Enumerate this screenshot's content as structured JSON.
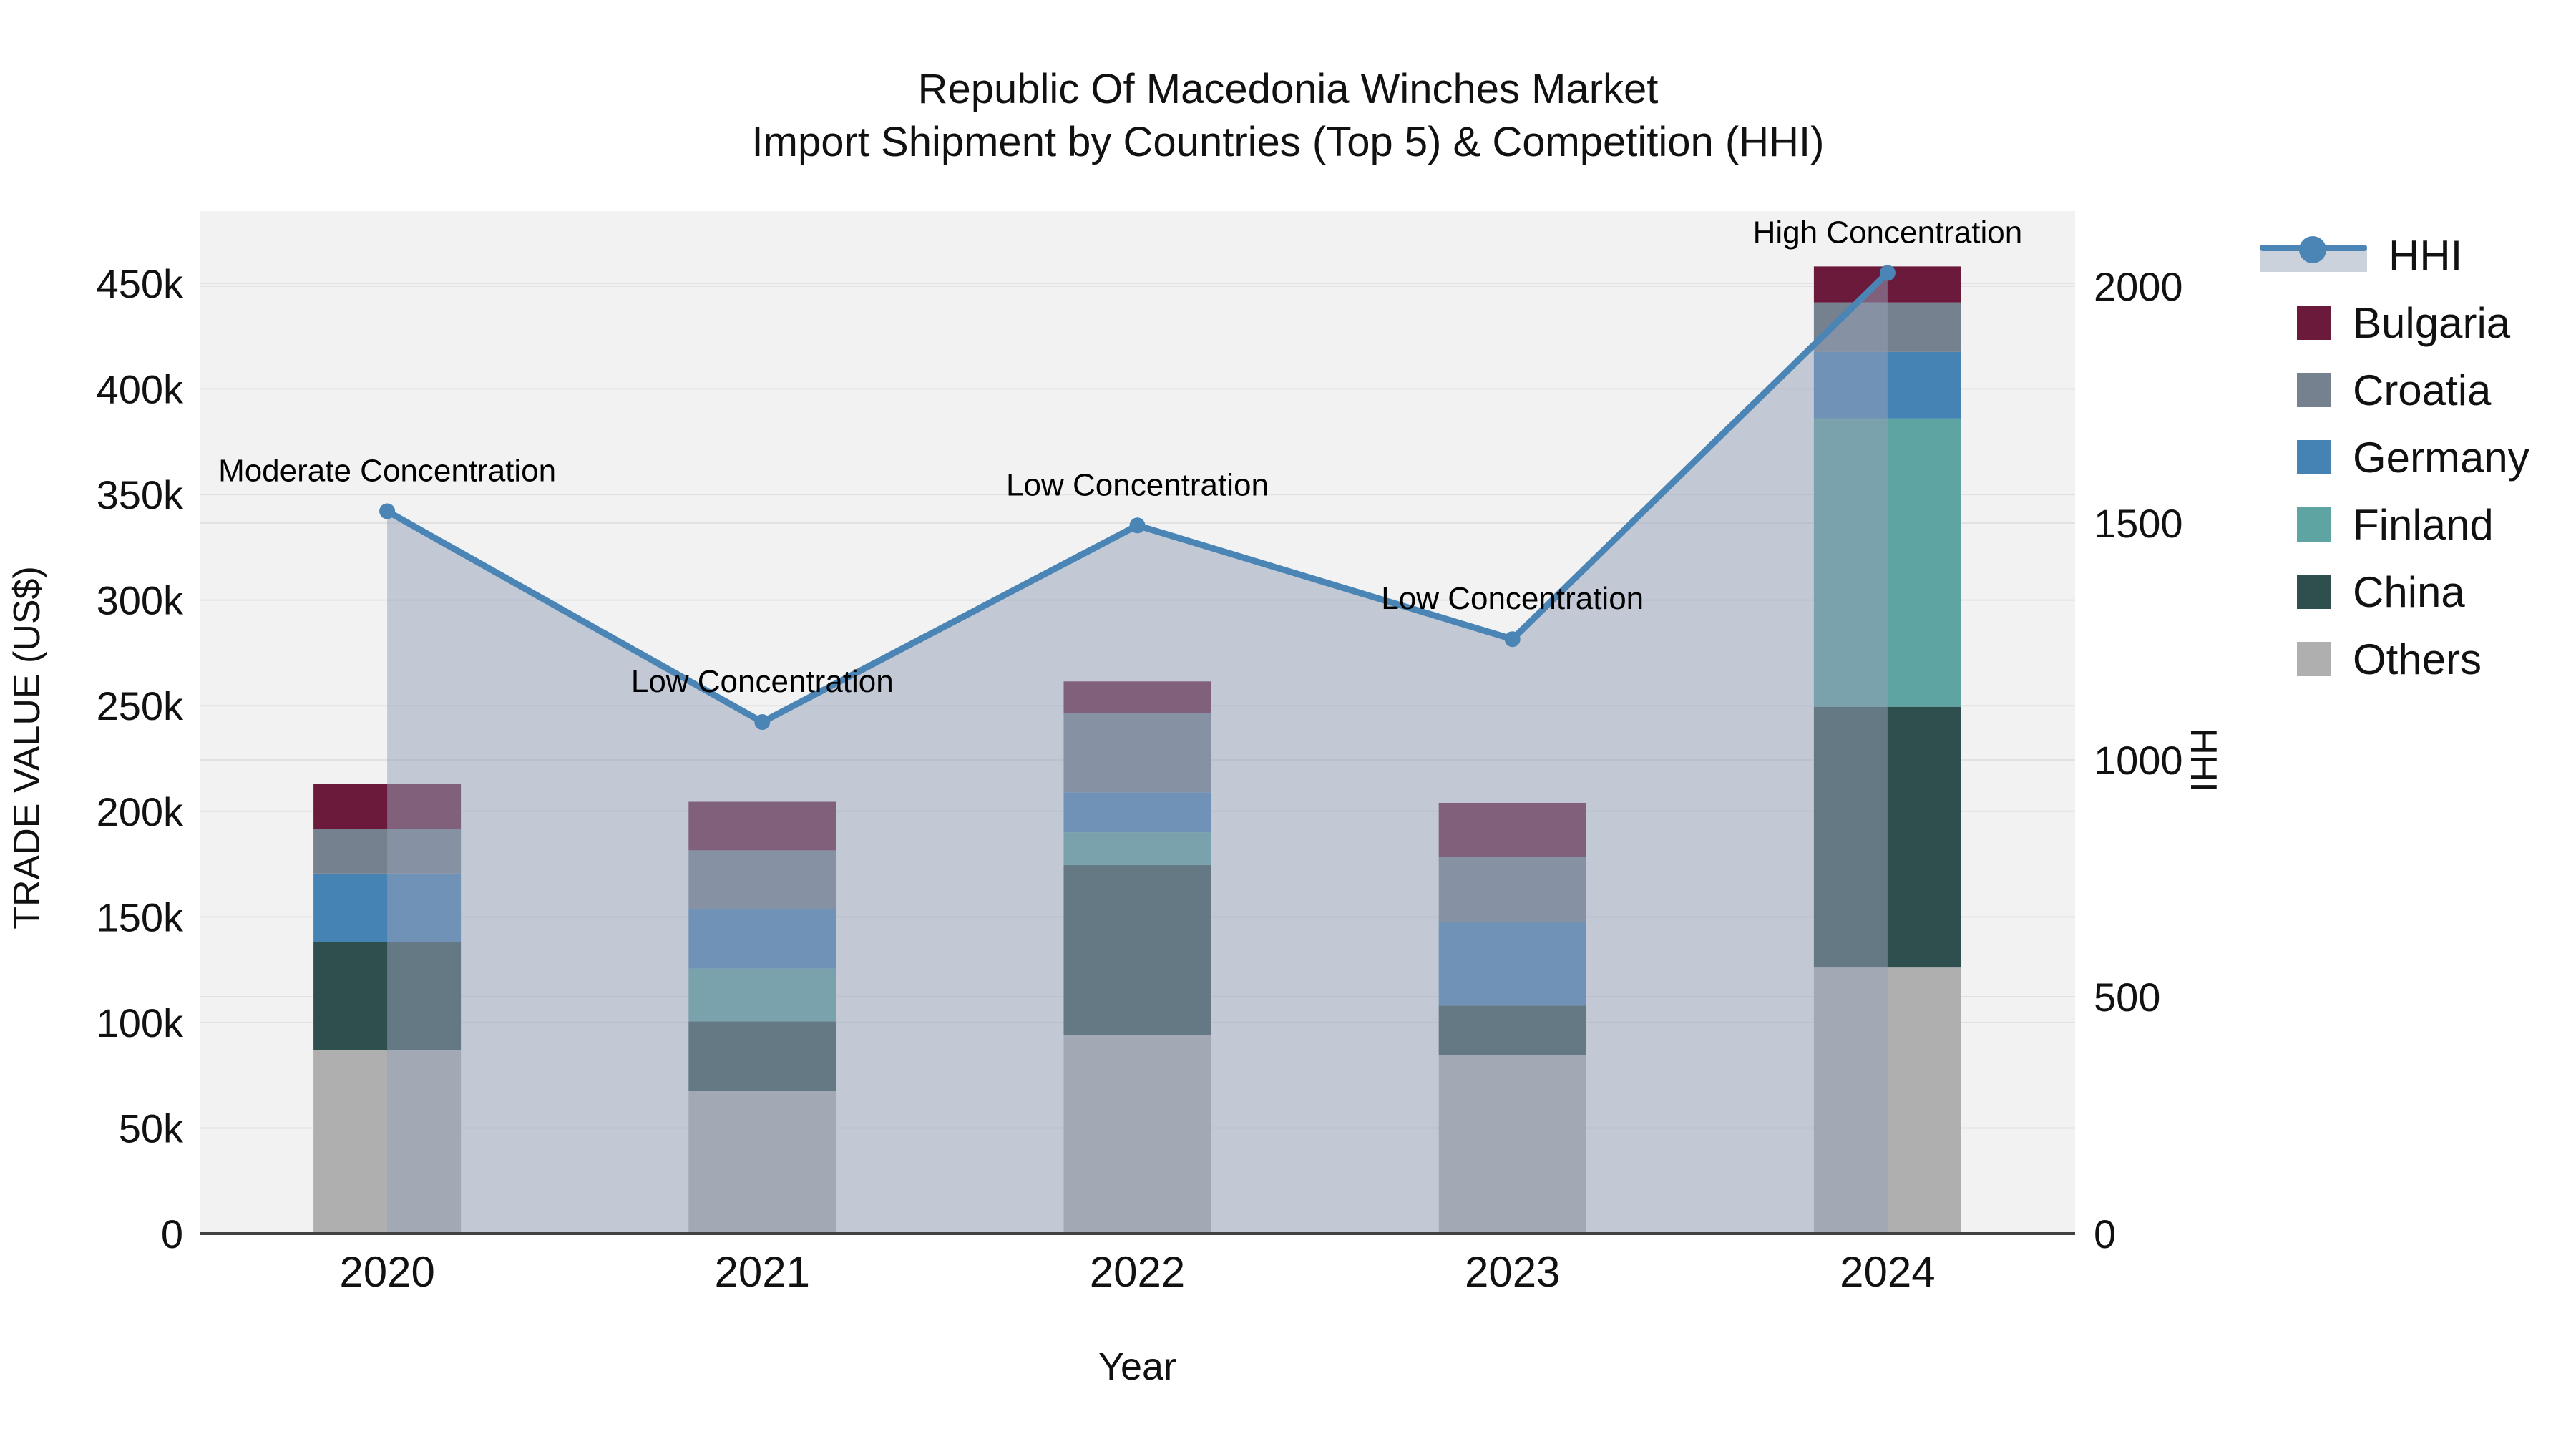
{
  "title": {
    "line1": "Republic Of Macedonia Winches Market",
    "line2": "Import Shipment by Countries (Top 5) & Competition (HHI)"
  },
  "axes": {
    "left": {
      "title": "TRADE VALUE (US$)",
      "tick_labels": [
        "0",
        "50k",
        "100k",
        "150k",
        "200k",
        "250k",
        "300k",
        "350k",
        "400k",
        "450k"
      ],
      "tick_values": [
        0,
        50000,
        100000,
        150000,
        200000,
        250000,
        300000,
        350000,
        400000,
        450000
      ]
    },
    "right": {
      "title": "HHI",
      "tick_labels": [
        "0",
        "500",
        "1000",
        "1500",
        "2000"
      ],
      "tick_values": [
        0,
        500,
        1000,
        1500,
        2000
      ]
    },
    "x": {
      "title": "Year"
    }
  },
  "legend": {
    "items": [
      {
        "label": "HHI",
        "type": "line",
        "color": "#4a85b6"
      },
      {
        "label": "Bulgaria",
        "type": "swatch",
        "color": "#6b1a3c"
      },
      {
        "label": "Croatia",
        "type": "swatch",
        "color": "#75818f"
      },
      {
        "label": "Germany",
        "type": "swatch",
        "color": "#4583b5"
      },
      {
        "label": "Finland",
        "type": "swatch",
        "color": "#5da4a2"
      },
      {
        "label": "China",
        "type": "swatch",
        "color": "#2e4f4d"
      },
      {
        "label": "Others",
        "type": "swatch",
        "color": "#afafaf"
      }
    ]
  },
  "chart_data": {
    "type": "combo: stacked-bar (left axis) + line-with-area (right axis)",
    "categories": [
      "2020",
      "2021",
      "2022",
      "2023",
      "2024"
    ],
    "bar_series": [
      {
        "name": "Others",
        "color": "#afafaf",
        "values": [
          87000,
          67500,
          94000,
          84500,
          126000
        ]
      },
      {
        "name": "China",
        "color": "#2e4f4d",
        "values": [
          51000,
          33000,
          80500,
          23500,
          123500
        ]
      },
      {
        "name": "Finland",
        "color": "#5da4a2",
        "values": [
          0,
          25000,
          15500,
          0,
          136500
        ]
      },
      {
        "name": "Germany",
        "color": "#4583b5",
        "values": [
          32500,
          28000,
          19000,
          39500,
          31500
        ]
      },
      {
        "name": "Croatia",
        "color": "#75818f",
        "values": [
          21000,
          28000,
          37500,
          31000,
          23500
        ]
      },
      {
        "name": "Bulgaria",
        "color": "#6b1a3c",
        "values": [
          21500,
          23000,
          15000,
          25500,
          17000
        ]
      }
    ],
    "bar_totals": [
      213000,
      204500,
      261500,
      204000,
      458000
    ],
    "line_series": {
      "name": "HHI",
      "axis": "right",
      "color": "#4a85b6",
      "area_color": "rgba(150,162,184,0.52)",
      "values": [
        1525,
        1080,
        1495,
        1255,
        2028
      ]
    },
    "annotations": [
      {
        "x_index": 0,
        "text": "Moderate Concentration"
      },
      {
        "x_index": 1,
        "text": "Low Concentration"
      },
      {
        "x_index": 2,
        "text": "Low Concentration"
      },
      {
        "x_index": 3,
        "text": "Low Concentration"
      },
      {
        "x_index": 4,
        "text": "High Concentration"
      }
    ],
    "ylabel": "TRADE VALUE (US$)",
    "y2label": "HHI",
    "xlabel": "Year",
    "ylim_left": [
      0,
      484000
    ],
    "ylim_right": [
      0,
      2160
    ],
    "grid": true,
    "legend_position": "right"
  },
  "colors": {
    "plot_background": "#f2f2f2",
    "gridline": "#e2e2e2",
    "axis_line": "#424242",
    "text": "#111111"
  }
}
